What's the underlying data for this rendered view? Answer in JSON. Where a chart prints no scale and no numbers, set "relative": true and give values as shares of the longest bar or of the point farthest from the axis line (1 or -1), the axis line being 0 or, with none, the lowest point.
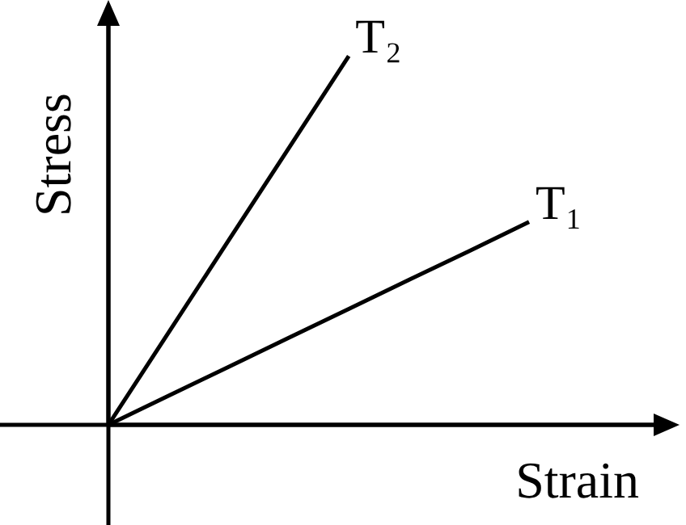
{
  "chart_data": {
    "type": "line",
    "xlabel": "Strain",
    "ylabel": "Stress",
    "relative": true,
    "tick_labels": false,
    "categories": [
      null,
      null,
      null,
      null,
      null,
      null,
      null,
      null
    ],
    "series": [
      {
        "name": "T₂",
        "color": "#000000",
        "values": [
          0,
          0.25,
          0.5,
          0.75,
          1,
          null,
          null,
          null
        ]
      },
      {
        "name": "T₁",
        "color": "#000000",
        "values": [
          0,
          0.079,
          0.157,
          0.236,
          0.314,
          0.393,
          0.471,
          0.55
        ]
      }
    ]
  }
}
